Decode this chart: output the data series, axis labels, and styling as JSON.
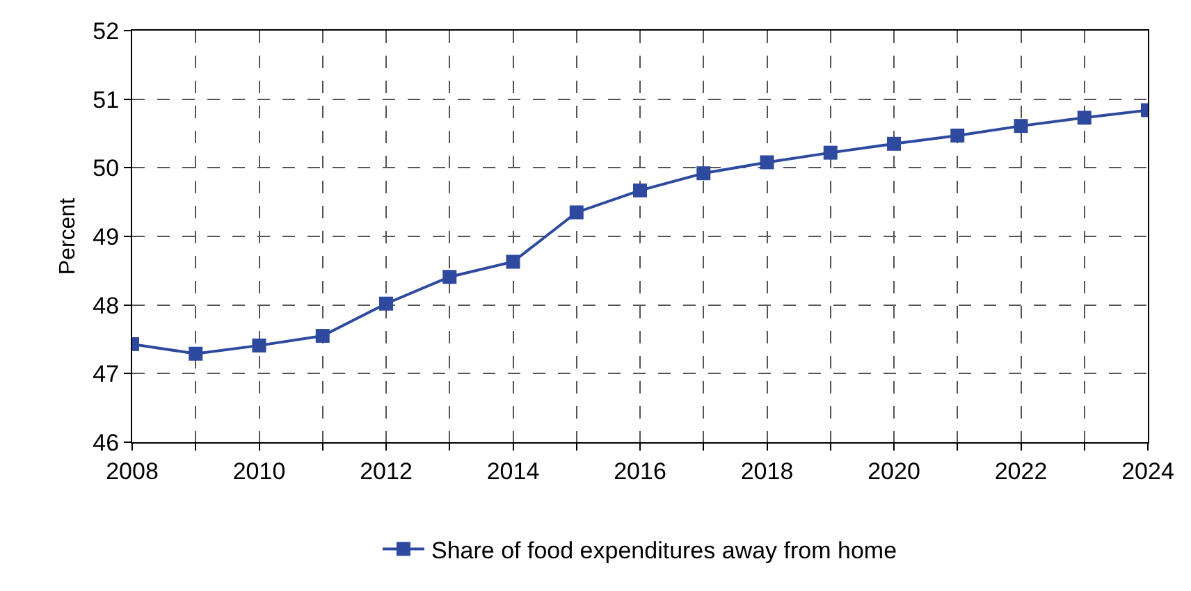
{
  "chart_data": {
    "type": "line",
    "ylabel": "Percent",
    "x": [
      2008,
      2009,
      2010,
      2011,
      2012,
      2013,
      2014,
      2015,
      2016,
      2017,
      2018,
      2019,
      2020,
      2021,
      2022,
      2023,
      2024
    ],
    "series": [
      {
        "name": "Share of food expenditures away from home",
        "color": "#2e4a9e",
        "values": [
          47.43,
          47.29,
          47.41,
          47.55,
          48.02,
          48.41,
          48.63,
          49.35,
          49.67,
          49.92,
          50.08,
          50.22,
          50.35,
          50.47,
          50.61,
          50.73,
          50.84
        ]
      }
    ],
    "xlim": [
      2008,
      2024
    ],
    "xticks": [
      2008,
      {
        "value": 2009,
        "label": null
      },
      2010,
      {
        "value": 2011,
        "label": null
      },
      2012,
      {
        "value": 2013,
        "label": null
      },
      2014,
      {
        "value": 2015,
        "label": null
      },
      2016,
      {
        "value": 2017,
        "label": null
      },
      2018,
      {
        "value": 2019,
        "label": null
      },
      2020,
      {
        "value": 2021,
        "label": null
      },
      2022,
      {
        "value": 2023,
        "label": null
      },
      2024
    ],
    "ylim": [
      46,
      52
    ],
    "yticks": [
      46,
      47,
      48,
      49,
      50,
      51,
      52
    ],
    "grid": true,
    "legend": "bottom",
    "marker": "square",
    "line_style": "solid"
  }
}
